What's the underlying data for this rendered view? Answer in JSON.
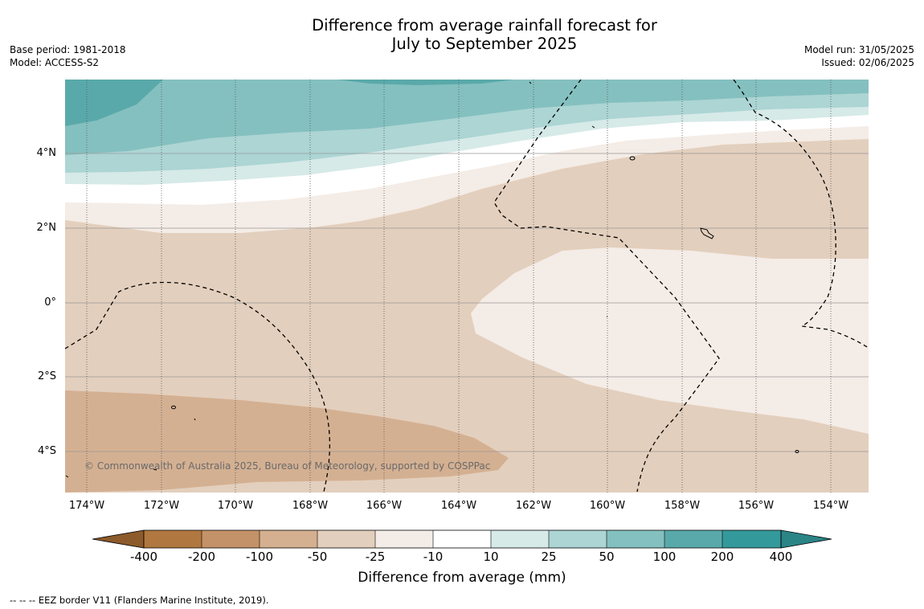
{
  "title_line1": "Difference from average rainfall forecast for",
  "title_line2": "July to September 2025",
  "meta_left": {
    "base_period": "Base period: 1981-2018",
    "model": "Model: ACCESS-S2"
  },
  "meta_right": {
    "model_run": "Model run: 31/05/2025",
    "issued": "Issued: 02/06/2025"
  },
  "copyright": "© Commonwealth of Australia 2025, Bureau of Meteorology, supported by COSPPac",
  "map": {
    "lat_labels": [
      "4°N",
      "2°N",
      "0°",
      "2°S",
      "4°S"
    ],
    "lon_labels": [
      "174°W",
      "172°W",
      "170°W",
      "168°W",
      "166°W",
      "164°W",
      "162°W",
      "160°W",
      "158°W",
      "156°W",
      "154°W"
    ]
  },
  "colorbar": {
    "title": "Difference from average (mm)",
    "ticks": [
      "-400",
      "-200",
      "-100",
      "-50",
      "-25",
      "-10",
      "10",
      "25",
      "50",
      "100",
      "200",
      "400"
    ],
    "colors": [
      "#8c5a2b",
      "#b07840",
      "#c49268",
      "#d4b090",
      "#e3cfbd",
      "#f4ece6",
      "#ffffff",
      "#d6eae8",
      "#acd5d4",
      "#84c0bf",
      "#5aa9aa",
      "#34999a",
      "#2b8486"
    ]
  },
  "footer": "--  --  -- EEZ border V11 (Flanders Marine Institute, 2019)."
}
